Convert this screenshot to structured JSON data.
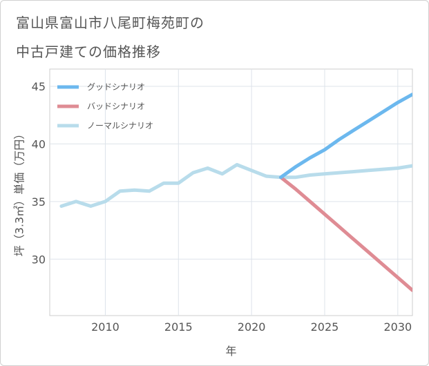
{
  "title_lines": [
    "富山県富山市八尾町梅苑町の",
    "中古戸建ての価格推移"
  ],
  "chart_data": {
    "type": "line",
    "xlabel": "年",
    "ylabel": "坪（3.3㎡）単価（万円）",
    "xlim": [
      2006.2,
      2031
    ],
    "ylim": [
      25.1,
      46.5
    ],
    "x_ticks": [
      2010,
      2015,
      2020,
      2025,
      2030
    ],
    "y_ticks": [
      30,
      35,
      40,
      45
    ],
    "grid": true,
    "legend_position": "top-left",
    "series": [
      {
        "name": "グッドシナリオ",
        "color": "#6cb8ee",
        "x": [
          2022,
          2023,
          2024,
          2025,
          2026,
          2027,
          2028,
          2029,
          2030,
          2031
        ],
        "y": [
          37.1,
          38.0,
          38.8,
          39.5,
          40.4,
          41.2,
          42.0,
          42.8,
          43.6,
          44.3
        ]
      },
      {
        "name": "バッドシナリオ",
        "color": "#df8c94",
        "x": [
          2022,
          2023,
          2024,
          2025,
          2026,
          2027,
          2028,
          2029,
          2030,
          2031
        ],
        "y": [
          37.1,
          36.1,
          35.0,
          33.9,
          32.8,
          31.7,
          30.6,
          29.5,
          28.4,
          27.3
        ]
      },
      {
        "name": "ノーマルシナリオ",
        "color": "#b8dceb",
        "x": [
          2007,
          2008,
          2009,
          2010,
          2011,
          2012,
          2013,
          2014,
          2015,
          2016,
          2017,
          2018,
          2019,
          2020,
          2021,
          2022,
          2023,
          2024,
          2025,
          2026,
          2027,
          2028,
          2029,
          2030,
          2031
        ],
        "y": [
          34.6,
          35.0,
          34.6,
          35.0,
          35.9,
          36.0,
          35.9,
          36.6,
          36.6,
          37.5,
          37.9,
          37.4,
          38.2,
          37.7,
          37.2,
          37.1,
          37.1,
          37.3,
          37.4,
          37.5,
          37.6,
          37.7,
          37.8,
          37.9,
          38.1
        ]
      }
    ]
  }
}
